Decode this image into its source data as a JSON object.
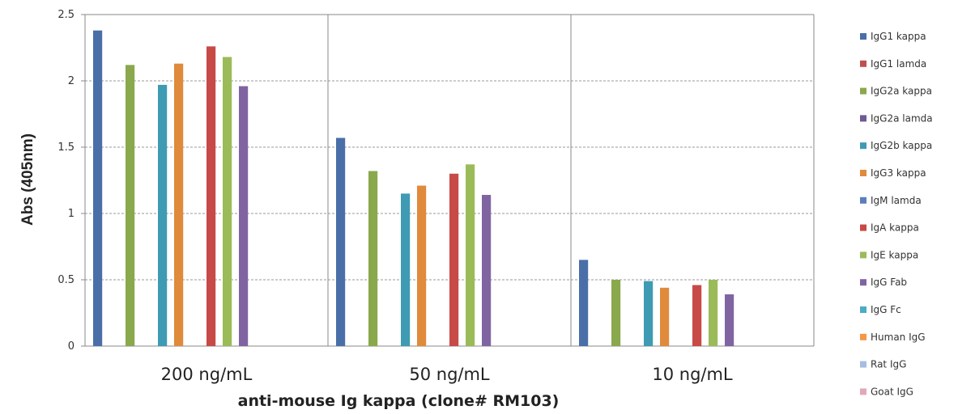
{
  "chart_data": {
    "type": "bar",
    "title": "",
    "xlabel": "anti-mouse Ig kappa (clone# RM103)",
    "ylabel": "Abs (405nm)",
    "ylim": [
      0,
      2.5
    ],
    "yticks": [
      "0",
      "0.5",
      "1",
      "1.5",
      "2",
      "2.5"
    ],
    "grid": true,
    "legend_position": "right",
    "categories": [
      "200 ng/mL",
      "50 ng/mL",
      "10 ng/mL"
    ],
    "series": [
      {
        "name": "IgG1 kappa",
        "color": "#4a6fa8",
        "values": [
          2.38,
          1.57,
          0.65
        ]
      },
      {
        "name": "IgG1 lamda",
        "color": "#c0504d",
        "values": [
          null,
          null,
          null
        ]
      },
      {
        "name": "IgG2a kappa",
        "color": "#8aa84c",
        "values": [
          2.12,
          1.32,
          0.5
        ]
      },
      {
        "name": "IgG2a lamda",
        "color": "#6e5a96",
        "values": [
          null,
          null,
          null
        ]
      },
      {
        "name": "IgG2b kappa",
        "color": "#3e9bb3",
        "values": [
          1.97,
          1.15,
          0.49
        ]
      },
      {
        "name": "IgG3 kappa",
        "color": "#e08a3c",
        "values": [
          2.13,
          1.21,
          0.44
        ]
      },
      {
        "name": "IgM lamda",
        "color": "#5b7fbd",
        "values": [
          null,
          null,
          null
        ]
      },
      {
        "name": "IgA kappa",
        "color": "#c74a47",
        "values": [
          2.26,
          1.3,
          0.46
        ]
      },
      {
        "name": "IgE kappa",
        "color": "#9bbb59",
        "values": [
          2.18,
          1.37,
          0.5
        ]
      },
      {
        "name": "IgG Fab",
        "color": "#8064a2",
        "values": [
          1.96,
          1.14,
          0.39
        ]
      },
      {
        "name": "IgG Fc",
        "color": "#4bacc6",
        "values": [
          null,
          null,
          null
        ]
      },
      {
        "name": "Human IgG",
        "color": "#f79646",
        "values": [
          null,
          null,
          null
        ]
      },
      {
        "name": "Rat IgG",
        "color": "#a6bde0",
        "values": [
          null,
          null,
          null
        ]
      },
      {
        "name": "Goat IgG",
        "color": "#e3a8b8",
        "values": [
          null,
          null,
          null
        ]
      }
    ]
  }
}
